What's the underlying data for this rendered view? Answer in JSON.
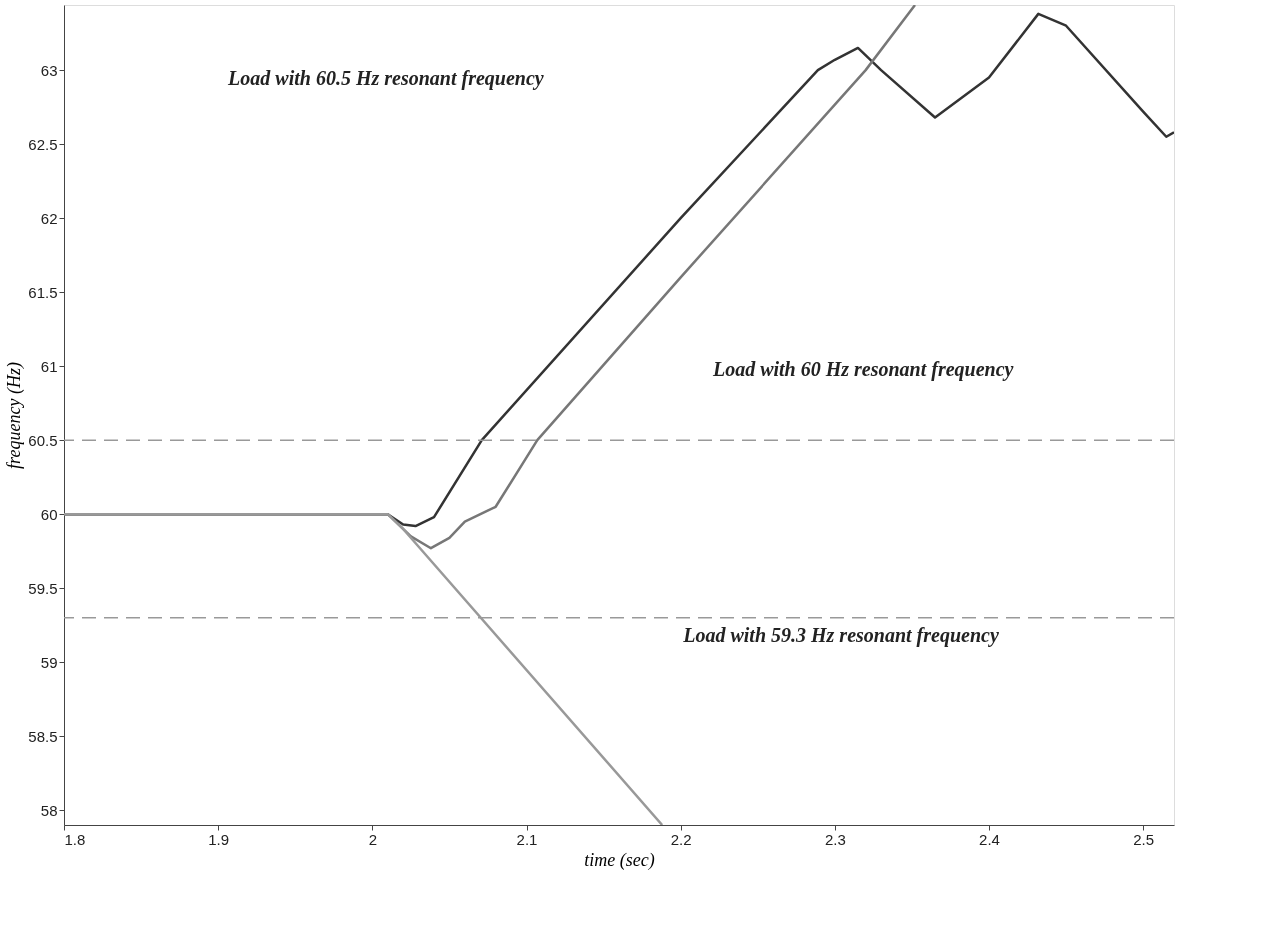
{
  "chart_data": {
    "type": "line",
    "xlabel": "time (sec)",
    "ylabel": "frequency (Hz)",
    "xlim": [
      1.8,
      2.52
    ],
    "ylim": [
      57.9,
      63.44
    ],
    "xticks": [
      1.8,
      1.9,
      2,
      2.1,
      2.2,
      2.3,
      2.4,
      2.5
    ],
    "yticks": [
      58,
      58.5,
      59,
      59.5,
      60,
      60.5,
      61,
      61.5,
      62,
      62.5,
      63
    ],
    "grid": false,
    "marker": "none",
    "line_style": "solid",
    "series": [
      {
        "color": "#333333",
        "x": [
          1.8,
          2.01,
          2.02,
          2.028,
          2.04,
          2.071,
          2.2,
          2.289,
          2.3,
          2.315,
          2.33,
          2.365,
          2.4,
          2.432,
          2.45,
          2.5,
          2.515,
          2.52
        ],
        "values": [
          60,
          60,
          59.93,
          59.92,
          59.98,
          60.5,
          62.0,
          63.0,
          63.07,
          63.15,
          63.0,
          62.68,
          62.95,
          63.38,
          63.3,
          62.72,
          62.55,
          62.58
        ]
      },
      {
        "color": "#777777",
        "x": [
          1.8,
          2.01,
          2.025,
          2.038,
          2.05,
          2.06,
          2.08,
          2.107,
          2.2,
          2.32,
          2.352
        ],
        "values": [
          60,
          60,
          59.85,
          59.77,
          59.84,
          59.95,
          60.05,
          60.5,
          61.6,
          63.0,
          63.44
        ]
      },
      {
        "color": "#999999",
        "x": [
          1.8,
          2.01,
          2.02,
          2.188
        ],
        "values": [
          60,
          60,
          59.9,
          57.9
        ]
      }
    ],
    "ref_lines": [
      {
        "axis": "y",
        "value": 60.5,
        "color": "#999999",
        "line_style": "dashed"
      },
      {
        "axis": "y",
        "value": 59.3,
        "color": "#999999",
        "line_style": "dashed"
      }
    ],
    "annotations": [
      "Load with 60.5 Hz resonant frequency",
      "Load with 60 Hz resonant frequency",
      "Load with 59.3 Hz resonant frequency"
    ]
  }
}
